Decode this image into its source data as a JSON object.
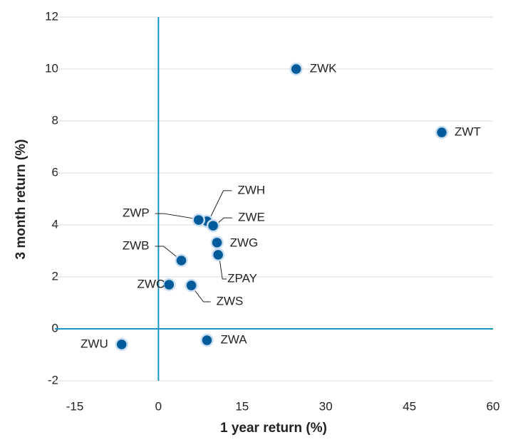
{
  "chart_data": {
    "type": "scatter",
    "xlabel": "1 year return (%)",
    "ylabel": "3 month return (%)",
    "labels": [
      "ZWK",
      "ZWT",
      "ZWH",
      "ZWE",
      "ZWP",
      "ZWG",
      "ZPAY",
      "ZWB",
      "ZWC",
      "ZWS",
      "ZWA",
      "ZWU"
    ],
    "x": [
      24.7,
      50.8,
      8.7,
      9.8,
      7.2,
      10.5,
      10.7,
      4.1,
      1.9,
      5.9,
      8.7,
      -6.6
    ],
    "y": [
      10.0,
      7.56,
      4.14,
      3.97,
      4.19,
      3.32,
      2.85,
      2.63,
      1.7,
      1.67,
      -0.44,
      -0.6
    ],
    "color": "#005b9a",
    "zero_line_color": "#1a95c8",
    "xlim": [
      -15,
      60
    ],
    "xticks": [
      -15,
      0,
      15,
      30,
      45,
      60
    ],
    "ylim": [
      -2,
      12
    ],
    "yticks": [
      -2,
      0,
      2,
      4,
      6,
      8,
      10,
      12
    ],
    "grid": true
  }
}
